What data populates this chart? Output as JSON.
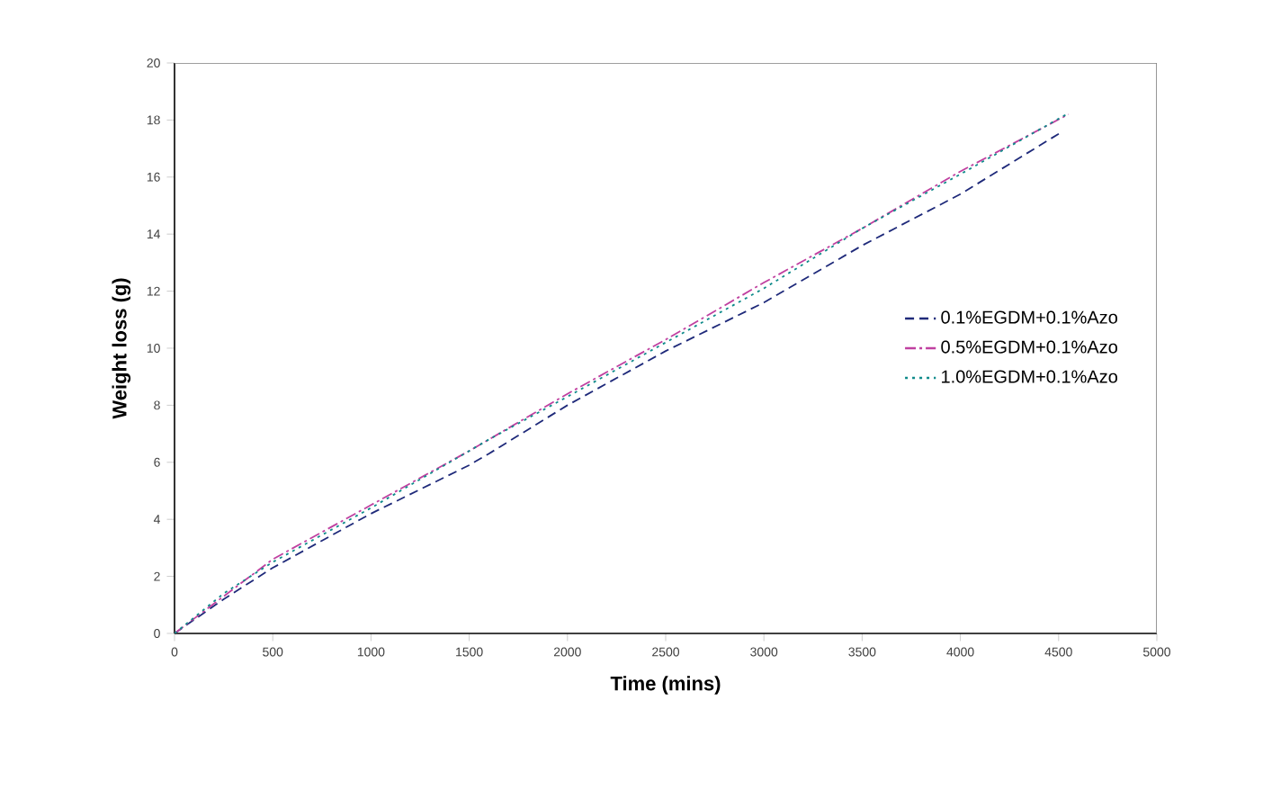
{
  "chart_data": {
    "type": "line",
    "xlabel": "Time (mins)",
    "ylabel": "Weight loss (g)",
    "xlim": [
      0,
      5000
    ],
    "ylim": [
      0,
      20
    ],
    "xticks": [
      0,
      500,
      1000,
      1500,
      2000,
      2500,
      3000,
      3500,
      4000,
      4500,
      5000
    ],
    "yticks": [
      0,
      2,
      4,
      6,
      8,
      10,
      12,
      14,
      16,
      18,
      20
    ],
    "grid": false,
    "legend": "right",
    "marker": "none",
    "series": [
      {
        "name": "0.1%EGDM+0.1%Azo",
        "color": "#1f2a7a",
        "line_style": "dashed",
        "x": [
          0,
          250,
          500,
          1000,
          1500,
          1600,
          2000,
          2500,
          3000,
          3500,
          4000,
          4520
        ],
        "values": [
          0,
          1.2,
          2.3,
          4.2,
          5.9,
          6.3,
          8.0,
          9.9,
          11.6,
          13.6,
          15.4,
          17.6
        ]
      },
      {
        "name": "0.5%EGDM+0.1%Azo",
        "color": "#c040a0",
        "line_style": "dashdot",
        "x": [
          0,
          250,
          500,
          1000,
          1500,
          2000,
          2500,
          3000,
          3500,
          4000,
          4550
        ],
        "values": [
          0,
          1.3,
          2.6,
          4.5,
          6.4,
          8.4,
          10.3,
          12.3,
          14.2,
          16.2,
          18.2
        ]
      },
      {
        "name": "1.0%EGDM+0.1%Azo",
        "color": "#0e8a8a",
        "line_style": "dotted",
        "x": [
          0,
          250,
          500,
          1000,
          1600,
          2000,
          2500,
          3000,
          3500,
          4000,
          4540
        ],
        "values": [
          0,
          1.4,
          2.5,
          4.4,
          6.8,
          8.3,
          10.2,
          12.1,
          14.2,
          16.1,
          18.2
        ]
      }
    ]
  }
}
